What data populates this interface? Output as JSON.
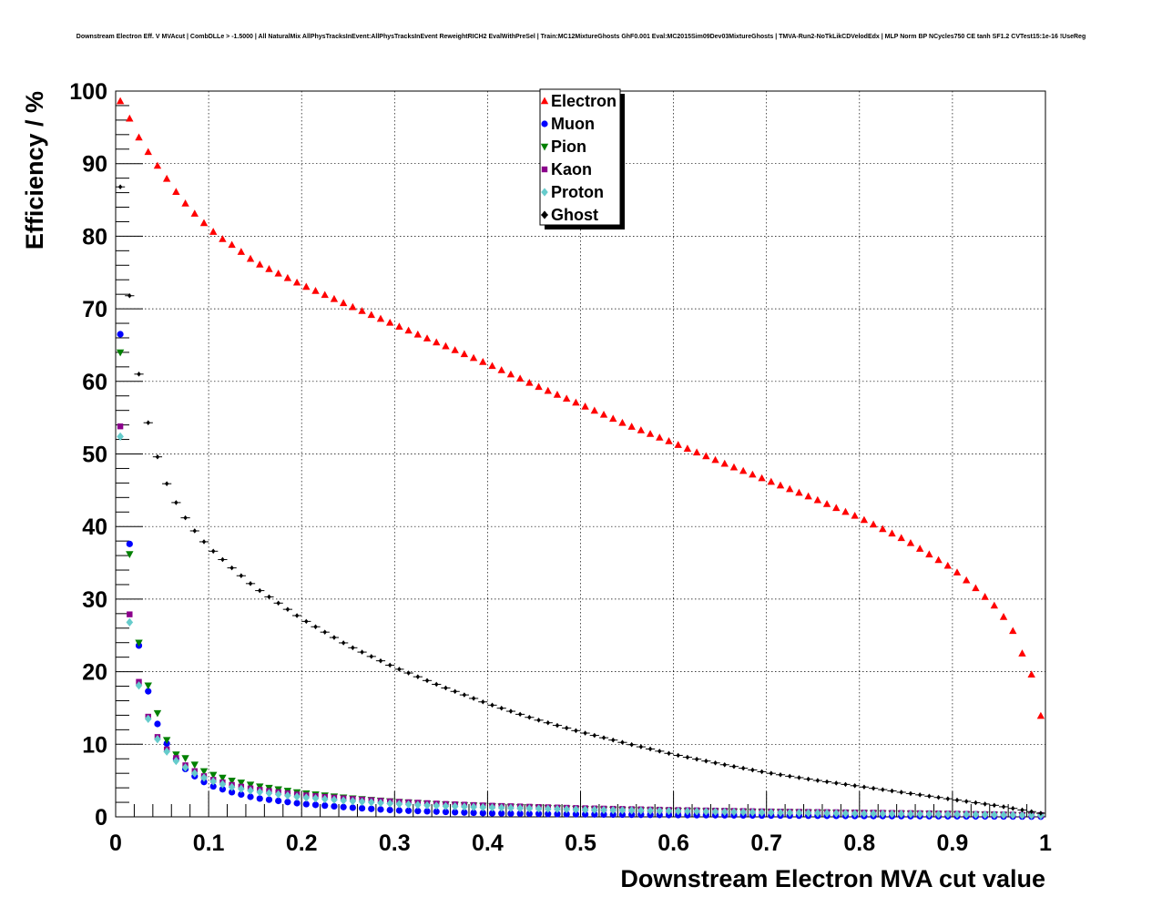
{
  "chart_data": {
    "type": "scatter",
    "title": "Downstream Electron Eff. V MVAcut | CombDLLe > -1.5000 | All NaturalMix AllPhysTracksInEvent:AllPhysTracksInEvent ReweightRICH2 EvalWithPreSel | Train:MC12MixtureGhosts GhF0.001 Eval:MC2015Sim09Dev03MixtureGhosts | TMVA-Run2-NoTkLikCDVelodEdx | MLP Norm BP NCycles750 CE tanh SF1.2 CVTest15:1e-16 !UseReg",
    "xlabel": "Downstream Electron MVA cut value",
    "ylabel": "Efficiency / %",
    "xlim": [
      0,
      1
    ],
    "ylim": [
      0,
      100
    ],
    "x_ticks": [
      "0",
      "0.1",
      "0.2",
      "0.3",
      "0.4",
      "0.5",
      "0.6",
      "0.7",
      "0.8",
      "0.9",
      "1"
    ],
    "y_ticks": [
      "0",
      "10",
      "20",
      "30",
      "40",
      "50",
      "60",
      "70",
      "80",
      "90",
      "100"
    ],
    "grid": true,
    "legend_position": "top-center",
    "bin_step": 0.01,
    "x_first_center": 0.005,
    "series": [
      {
        "name": "Electron",
        "marker": "triangle-up",
        "color": "#ff0000",
        "anchors": [
          [
            0.005,
            98.6
          ],
          [
            0.015,
            96.2
          ],
          [
            0.025,
            93.6
          ],
          [
            0.035,
            91.6
          ],
          [
            0.045,
            89.7
          ],
          [
            0.055,
            87.9
          ],
          [
            0.065,
            86.1
          ],
          [
            0.075,
            84.5
          ],
          [
            0.085,
            83.1
          ],
          [
            0.095,
            81.8
          ],
          [
            0.105,
            80.6
          ],
          [
            0.115,
            79.6
          ],
          [
            0.125,
            78.8
          ],
          [
            0.15,
            76.4
          ],
          [
            0.2,
            73.3
          ],
          [
            0.25,
            70.5
          ],
          [
            0.3,
            67.8
          ],
          [
            0.35,
            65.1
          ],
          [
            0.4,
            62.4
          ],
          [
            0.45,
            59.5
          ],
          [
            0.5,
            56.8
          ],
          [
            0.55,
            54.0
          ],
          [
            0.6,
            51.5
          ],
          [
            0.65,
            48.9
          ],
          [
            0.7,
            46.4
          ],
          [
            0.75,
            43.9
          ],
          [
            0.8,
            41.2
          ],
          [
            0.85,
            38.1
          ],
          [
            0.9,
            34.2
          ],
          [
            0.925,
            31.5
          ],
          [
            0.95,
            28.5
          ],
          [
            0.965,
            25.6
          ],
          [
            0.975,
            22.5
          ],
          [
            0.985,
            19.6
          ],
          [
            0.995,
            13.9
          ]
        ]
      },
      {
        "name": "Muon",
        "marker": "circle",
        "color": "#0000ff",
        "anchors": [
          [
            0.005,
            66.5
          ],
          [
            0.015,
            37.6
          ],
          [
            0.025,
            23.6
          ],
          [
            0.035,
            17.3
          ],
          [
            0.045,
            12.8
          ],
          [
            0.055,
            10.1
          ],
          [
            0.065,
            8.0
          ],
          [
            0.075,
            6.6
          ],
          [
            0.085,
            5.6
          ],
          [
            0.095,
            4.8
          ],
          [
            0.105,
            4.2
          ],
          [
            0.125,
            3.4
          ],
          [
            0.15,
            2.6
          ],
          [
            0.2,
            1.8
          ],
          [
            0.25,
            1.3
          ],
          [
            0.3,
            0.9
          ],
          [
            0.35,
            0.7
          ],
          [
            0.4,
            0.5
          ],
          [
            0.5,
            0.35
          ],
          [
            0.6,
            0.25
          ],
          [
            0.7,
            0.18
          ],
          [
            0.8,
            0.12
          ],
          [
            0.9,
            0.08
          ],
          [
            0.995,
            0.03
          ]
        ]
      },
      {
        "name": "Pion",
        "marker": "triangle-down",
        "color": "#008000",
        "anchors": [
          [
            0.005,
            64.0
          ],
          [
            0.015,
            36.2
          ],
          [
            0.025,
            24.0
          ],
          [
            0.035,
            18.1
          ],
          [
            0.045,
            14.3
          ],
          [
            0.055,
            10.6
          ],
          [
            0.065,
            8.6
          ],
          [
            0.075,
            8.1
          ],
          [
            0.085,
            7.2
          ],
          [
            0.095,
            6.3
          ],
          [
            0.105,
            5.8
          ],
          [
            0.125,
            5.0
          ],
          [
            0.15,
            4.3
          ],
          [
            0.2,
            3.3
          ],
          [
            0.25,
            2.6
          ],
          [
            0.3,
            2.1
          ],
          [
            0.35,
            1.75
          ],
          [
            0.4,
            1.5
          ],
          [
            0.5,
            1.1
          ],
          [
            0.6,
            0.85
          ],
          [
            0.7,
            0.7
          ],
          [
            0.8,
            0.55
          ],
          [
            0.9,
            0.4
          ],
          [
            0.995,
            0.2
          ]
        ]
      },
      {
        "name": "Kaon",
        "marker": "square",
        "color": "#8b008b",
        "anchors": [
          [
            0.005,
            53.8
          ],
          [
            0.015,
            27.9
          ],
          [
            0.025,
            18.6
          ],
          [
            0.035,
            13.8
          ],
          [
            0.045,
            11.0
          ],
          [
            0.055,
            9.3
          ],
          [
            0.065,
            8.1
          ],
          [
            0.075,
            7.1
          ],
          [
            0.085,
            6.3
          ],
          [
            0.095,
            5.6
          ],
          [
            0.105,
            5.1
          ],
          [
            0.125,
            4.4
          ],
          [
            0.15,
            3.8
          ],
          [
            0.2,
            3.0
          ],
          [
            0.25,
            2.5
          ],
          [
            0.3,
            2.1
          ],
          [
            0.35,
            1.8
          ],
          [
            0.4,
            1.55
          ],
          [
            0.5,
            1.2
          ],
          [
            0.6,
            0.95
          ],
          [
            0.7,
            0.75
          ],
          [
            0.8,
            0.6
          ],
          [
            0.9,
            0.45
          ],
          [
            0.995,
            0.25
          ]
        ]
      },
      {
        "name": "Proton",
        "marker": "diamond",
        "color": "#66cccc",
        "anchors": [
          [
            0.005,
            52.4
          ],
          [
            0.015,
            26.8
          ],
          [
            0.025,
            18.1
          ],
          [
            0.035,
            13.5
          ],
          [
            0.045,
            10.7
          ],
          [
            0.055,
            9.0
          ],
          [
            0.065,
            7.7
          ],
          [
            0.075,
            6.8
          ],
          [
            0.085,
            6.0
          ],
          [
            0.095,
            5.4
          ],
          [
            0.105,
            4.9
          ],
          [
            0.125,
            4.1
          ],
          [
            0.15,
            3.5
          ],
          [
            0.2,
            2.7
          ],
          [
            0.25,
            2.2
          ],
          [
            0.3,
            1.8
          ],
          [
            0.35,
            1.5
          ],
          [
            0.4,
            1.3
          ],
          [
            0.5,
            1.0
          ],
          [
            0.6,
            0.8
          ],
          [
            0.7,
            0.6
          ],
          [
            0.8,
            0.45
          ],
          [
            0.9,
            0.35
          ],
          [
            0.995,
            0.2
          ]
        ]
      },
      {
        "name": "Ghost",
        "marker": "small-diamond",
        "color": "#000000",
        "anchors": [
          [
            0.005,
            86.8
          ],
          [
            0.015,
            71.8
          ],
          [
            0.025,
            61.0
          ],
          [
            0.035,
            54.3
          ],
          [
            0.045,
            49.6
          ],
          [
            0.055,
            45.9
          ],
          [
            0.065,
            43.3
          ],
          [
            0.075,
            41.2
          ],
          [
            0.085,
            39.4
          ],
          [
            0.095,
            37.9
          ],
          [
            0.105,
            36.6
          ],
          [
            0.125,
            34.3
          ],
          [
            0.15,
            31.6
          ],
          [
            0.2,
            27.3
          ],
          [
            0.25,
            23.6
          ],
          [
            0.3,
            20.6
          ],
          [
            0.35,
            18.0
          ],
          [
            0.4,
            15.6
          ],
          [
            0.45,
            13.5
          ],
          [
            0.5,
            11.7
          ],
          [
            0.55,
            10.1
          ],
          [
            0.6,
            8.6
          ],
          [
            0.65,
            7.3
          ],
          [
            0.7,
            6.1
          ],
          [
            0.75,
            5.1
          ],
          [
            0.8,
            4.2
          ],
          [
            0.85,
            3.3
          ],
          [
            0.9,
            2.4
          ],
          [
            0.95,
            1.5
          ],
          [
            0.995,
            0.5
          ]
        ]
      }
    ]
  }
}
